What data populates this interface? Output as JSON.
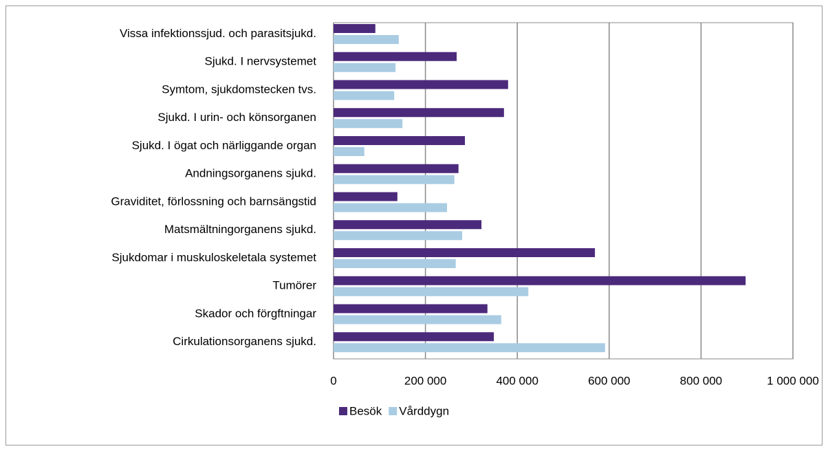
{
  "chart_data": {
    "type": "bar",
    "orientation": "horizontal",
    "categories": [
      "Vissa infektionssjud. och parasitsjukd.",
      "Sjukd. I nervsystemet",
      "Symtom, sjukdomstecken tvs.",
      "Sjukd. I urin- och könsorganen",
      "Sjukd. I ögat och närliggande organ",
      "Andningsorganens sjukd.",
      "Graviditet, förlossning och barnsängstid",
      "Matsmältningorganens sjukd.",
      "Sjukdomar i muskuloskeletala systemet",
      "Tumörer",
      "Skador och förgftningar ",
      "Cirkulationsorganens sjukd."
    ],
    "series": [
      {
        "name": "Besök",
        "color": "#4b2a7b",
        "values": [
          91000,
          268000,
          380000,
          371000,
          286000,
          272000,
          139000,
          322000,
          569000,
          897000,
          335000,
          349000
        ]
      },
      {
        "name": "Vårddygn",
        "color": "#a9cce3",
        "values": [
          142000,
          135000,
          132000,
          150000,
          67000,
          263000,
          247000,
          280000,
          266000,
          424000,
          365000,
          591000
        ]
      }
    ],
    "xlim": [
      0,
      1000000
    ],
    "xticks": [
      0,
      {
        "value": 200000,
        "label": "200 000"
      },
      {
        "value": 400000,
        "label": "400 000"
      },
      {
        "value": 600000,
        "label": "600 000"
      },
      {
        "value": 800000,
        "label": "800 000"
      },
      {
        "value": 1000000,
        "label": "1 000 000"
      }
    ],
    "grid": true,
    "legend": "bottom"
  }
}
